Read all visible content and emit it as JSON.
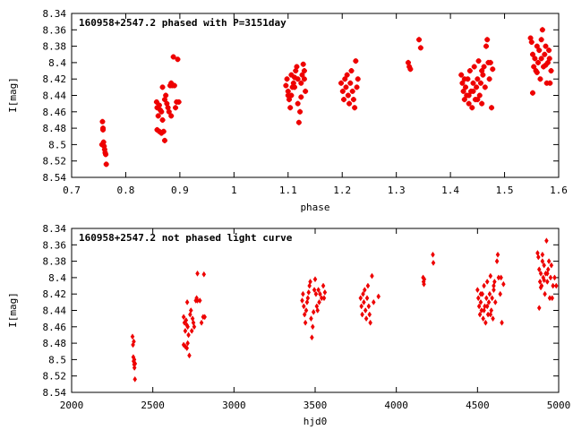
{
  "chart_data": [
    {
      "type": "scatter",
      "title": "160958+2547.2 phased with P=3151day",
      "xlabel": "phase",
      "ylabel": "I[mag]",
      "xlim": [
        0.7,
        1.6
      ],
      "ylim": [
        8.54,
        8.34
      ],
      "y_inverted": true,
      "grid": false,
      "color": "#ee0000",
      "xticks": [
        "0.7",
        "0.8",
        "0.9",
        "1",
        "1.1",
        "1.2",
        "1.3",
        "1.4",
        "1.5",
        "1.6"
      ],
      "yticks": [
        "8.34",
        "8.36",
        "8.38",
        "8.4",
        "8.42",
        "8.44",
        "8.46",
        "8.48",
        "8.5",
        "8.52",
        "8.54"
      ],
      "points": [
        [
          0.757,
          8.472
        ],
        [
          0.758,
          8.482
        ],
        [
          0.759,
          8.497
        ],
        [
          0.76,
          8.502
        ],
        [
          0.761,
          8.506
        ],
        [
          0.762,
          8.51
        ],
        [
          0.763,
          8.512
        ],
        [
          0.764,
          8.524
        ],
        [
          0.756,
          8.5
        ],
        [
          0.758,
          8.48
        ],
        [
          0.857,
          8.448
        ],
        [
          0.858,
          8.455
        ],
        [
          0.86,
          8.465
        ],
        [
          0.862,
          8.452
        ],
        [
          0.864,
          8.458
        ],
        [
          0.866,
          8.46
        ],
        [
          0.868,
          8.47
        ],
        [
          0.858,
          8.482
        ],
        [
          0.862,
          8.484
        ],
        [
          0.866,
          8.486
        ],
        [
          0.87,
          8.484
        ],
        [
          0.872,
          8.495
        ],
        [
          0.868,
          8.43
        ],
        [
          0.872,
          8.445
        ],
        [
          0.874,
          8.44
        ],
        [
          0.876,
          8.45
        ],
        [
          0.878,
          8.455
        ],
        [
          0.88,
          8.46
        ],
        [
          0.882,
          8.428
        ],
        [
          0.884,
          8.425
        ],
        [
          0.886,
          8.428
        ],
        [
          0.888,
          8.393
        ],
        [
          0.89,
          8.428
        ],
        [
          0.892,
          8.455
        ],
        [
          0.894,
          8.448
        ],
        [
          0.896,
          8.396
        ],
        [
          0.898,
          8.448
        ],
        [
          0.884,
          8.465
        ],
        [
          1.096,
          8.428
        ],
        [
          1.098,
          8.42
        ],
        [
          1.1,
          8.435
        ],
        [
          1.102,
          8.445
        ],
        [
          1.104,
          8.455
        ],
        [
          1.106,
          8.44
        ],
        [
          1.108,
          8.43
        ],
        [
          1.11,
          8.425
        ],
        [
          1.112,
          8.418
        ],
        [
          1.114,
          8.41
        ],
        [
          1.116,
          8.405
        ],
        [
          1.118,
          8.45
        ],
        [
          1.12,
          8.473
        ],
        [
          1.122,
          8.46
        ],
        [
          1.124,
          8.442
        ],
        [
          1.126,
          8.415
        ],
        [
          1.128,
          8.402
        ],
        [
          1.13,
          8.42
        ],
        [
          1.132,
          8.435
        ],
        [
          1.1,
          8.44
        ],
        [
          1.106,
          8.415
        ],
        [
          1.112,
          8.43
        ],
        [
          1.118,
          8.42
        ],
        [
          1.124,
          8.425
        ],
        [
          1.13,
          8.41
        ],
        [
          1.198,
          8.425
        ],
        [
          1.201,
          8.435
        ],
        [
          1.203,
          8.445
        ],
        [
          1.205,
          8.42
        ],
        [
          1.207,
          8.43
        ],
        [
          1.209,
          8.415
        ],
        [
          1.211,
          8.44
        ],
        [
          1.213,
          8.45
        ],
        [
          1.215,
          8.425
        ],
        [
          1.217,
          8.41
        ],
        [
          1.219,
          8.435
        ],
        [
          1.221,
          8.445
        ],
        [
          1.223,
          8.455
        ],
        [
          1.225,
          8.398
        ],
        [
          1.227,
          8.43
        ],
        [
          1.229,
          8.42
        ],
        [
          1.322,
          8.4
        ],
        [
          1.324,
          8.405
        ],
        [
          1.326,
          8.408
        ],
        [
          1.342,
          8.372
        ],
        [
          1.345,
          8.382
        ],
        [
          1.42,
          8.415
        ],
        [
          1.422,
          8.425
        ],
        [
          1.424,
          8.435
        ],
        [
          1.426,
          8.445
        ],
        [
          1.428,
          8.43
        ],
        [
          1.43,
          8.44
        ],
        [
          1.432,
          8.42
        ],
        [
          1.434,
          8.45
        ],
        [
          1.436,
          8.41
        ],
        [
          1.438,
          8.435
        ],
        [
          1.44,
          8.455
        ],
        [
          1.442,
          8.425
        ],
        [
          1.444,
          8.405
        ],
        [
          1.446,
          8.445
        ],
        [
          1.448,
          8.43
        ],
        [
          1.45,
          8.42
        ],
        [
          1.452,
          8.398
        ],
        [
          1.454,
          8.44
        ],
        [
          1.456,
          8.425
        ],
        [
          1.458,
          8.45
        ],
        [
          1.46,
          8.415
        ],
        [
          1.462,
          8.405
        ],
        [
          1.464,
          8.43
        ],
        [
          1.466,
          8.38
        ],
        [
          1.468,
          8.372
        ],
        [
          1.47,
          8.4
        ],
        [
          1.472,
          8.42
        ],
        [
          1.474,
          8.4
        ],
        [
          1.476,
          8.455
        ],
        [
          1.478,
          8.408
        ],
        [
          1.426,
          8.42
        ],
        [
          1.434,
          8.44
        ],
        [
          1.442,
          8.435
        ],
        [
          1.45,
          8.445
        ],
        [
          1.458,
          8.41
        ],
        [
          1.548,
          8.37
        ],
        [
          1.55,
          8.375
        ],
        [
          1.552,
          8.39
        ],
        [
          1.554,
          8.405
        ],
        [
          1.556,
          8.395
        ],
        [
          1.558,
          8.41
        ],
        [
          1.56,
          8.38
        ],
        [
          1.562,
          8.4
        ],
        [
          1.564,
          8.385
        ],
        [
          1.566,
          8.42
        ],
        [
          1.568,
          8.395
        ],
        [
          1.57,
          8.36
        ],
        [
          1.572,
          8.405
        ],
        [
          1.574,
          8.39
        ],
        [
          1.576,
          8.38
        ],
        [
          1.578,
          8.425
        ],
        [
          1.58,
          8.4
        ],
        [
          1.582,
          8.385
        ],
        [
          1.584,
          8.425
        ],
        [
          1.586,
          8.41
        ],
        [
          1.552,
          8.437
        ],
        [
          1.56,
          8.412
        ],
        [
          1.568,
          8.372
        ],
        [
          1.576,
          8.403
        ],
        [
          1.583,
          8.395
        ]
      ]
    },
    {
      "type": "scatter",
      "title": "160958+2547.2 not phased light curve",
      "xlabel": "hjd0",
      "ylabel": "I[mag]",
      "xlim": [
        2000,
        5000
      ],
      "ylim": [
        8.54,
        8.34
      ],
      "y_inverted": true,
      "grid": false,
      "color": "#ee0000",
      "xticks": [
        "2000",
        "2500",
        "3000",
        "3500",
        "4000",
        "4500",
        "5000"
      ],
      "yticks": [
        "8.34",
        "8.36",
        "8.38",
        "8.4",
        "8.42",
        "8.44",
        "8.46",
        "8.48",
        "8.5",
        "8.52",
        "8.54"
      ],
      "points": [
        [
          2375,
          8.472
        ],
        [
          2378,
          8.482
        ],
        [
          2380,
          8.497
        ],
        [
          2382,
          8.502
        ],
        [
          2385,
          8.506
        ],
        [
          2387,
          8.51
        ],
        [
          2390,
          8.524
        ],
        [
          2383,
          8.478
        ],
        [
          2386,
          8.5
        ],
        [
          2391,
          8.505
        ],
        [
          2690,
          8.448
        ],
        [
          2695,
          8.455
        ],
        [
          2700,
          8.465
        ],
        [
          2705,
          8.452
        ],
        [
          2710,
          8.458
        ],
        [
          2715,
          8.46
        ],
        [
          2720,
          8.47
        ],
        [
          2690,
          8.482
        ],
        [
          2700,
          8.484
        ],
        [
          2710,
          8.486
        ],
        [
          2715,
          8.48
        ],
        [
          2725,
          8.495
        ],
        [
          2712,
          8.43
        ],
        [
          2730,
          8.445
        ],
        [
          2735,
          8.44
        ],
        [
          2745,
          8.45
        ],
        [
          2750,
          8.455
        ],
        [
          2755,
          8.46
        ],
        [
          2765,
          8.428
        ],
        [
          2770,
          8.425
        ],
        [
          2775,
          8.428
        ],
        [
          2775,
          8.395
        ],
        [
          2790,
          8.428
        ],
        [
          2800,
          8.455
        ],
        [
          2810,
          8.448
        ],
        [
          2815,
          8.396
        ],
        [
          2820,
          8.448
        ],
        [
          2740,
          8.465
        ],
        [
          3420,
          8.428
        ],
        [
          3425,
          8.42
        ],
        [
          3430,
          8.435
        ],
        [
          3435,
          8.445
        ],
        [
          3440,
          8.455
        ],
        [
          3445,
          8.44
        ],
        [
          3450,
          8.43
        ],
        [
          3455,
          8.425
        ],
        [
          3460,
          8.418
        ],
        [
          3465,
          8.41
        ],
        [
          3470,
          8.405
        ],
        [
          3475,
          8.45
        ],
        [
          3480,
          8.473
        ],
        [
          3485,
          8.46
        ],
        [
          3490,
          8.442
        ],
        [
          3495,
          8.415
        ],
        [
          3500,
          8.402
        ],
        [
          3505,
          8.42
        ],
        [
          3510,
          8.435
        ],
        [
          3515,
          8.44
        ],
        [
          3520,
          8.415
        ],
        [
          3525,
          8.43
        ],
        [
          3530,
          8.42
        ],
        [
          3540,
          8.425
        ],
        [
          3550,
          8.41
        ],
        [
          3555,
          8.425
        ],
        [
          3560,
          8.418
        ],
        [
          3780,
          8.425
        ],
        [
          3785,
          8.435
        ],
        [
          3790,
          8.445
        ],
        [
          3795,
          8.42
        ],
        [
          3800,
          8.43
        ],
        [
          3805,
          8.415
        ],
        [
          3810,
          8.44
        ],
        [
          3815,
          8.45
        ],
        [
          3820,
          8.425
        ],
        [
          3825,
          8.41
        ],
        [
          3830,
          8.435
        ],
        [
          3835,
          8.445
        ],
        [
          3840,
          8.455
        ],
        [
          3850,
          8.398
        ],
        [
          3860,
          8.43
        ],
        [
          3890,
          8.423
        ],
        [
          4165,
          8.4
        ],
        [
          4168,
          8.405
        ],
        [
          4170,
          8.408
        ],
        [
          4172,
          8.402
        ],
        [
          4225,
          8.372
        ],
        [
          4228,
          8.382
        ],
        [
          4500,
          8.415
        ],
        [
          4505,
          8.425
        ],
        [
          4510,
          8.435
        ],
        [
          4515,
          8.445
        ],
        [
          4520,
          8.43
        ],
        [
          4525,
          8.44
        ],
        [
          4530,
          8.42
        ],
        [
          4535,
          8.45
        ],
        [
          4540,
          8.41
        ],
        [
          4545,
          8.435
        ],
        [
          4550,
          8.455
        ],
        [
          4555,
          8.425
        ],
        [
          4560,
          8.405
        ],
        [
          4565,
          8.445
        ],
        [
          4570,
          8.43
        ],
        [
          4575,
          8.42
        ],
        [
          4580,
          8.398
        ],
        [
          4585,
          8.44
        ],
        [
          4590,
          8.425
        ],
        [
          4595,
          8.45
        ],
        [
          4600,
          8.415
        ],
        [
          4605,
          8.405
        ],
        [
          4610,
          8.43
        ],
        [
          4620,
          8.38
        ],
        [
          4625,
          8.372
        ],
        [
          4630,
          8.4
        ],
        [
          4640,
          8.42
        ],
        [
          4645,
          8.4
        ],
        [
          4650,
          8.455
        ],
        [
          4660,
          8.408
        ],
        [
          4520,
          8.42
        ],
        [
          4540,
          8.44
        ],
        [
          4560,
          8.435
        ],
        [
          4580,
          8.445
        ],
        [
          4600,
          8.41
        ],
        [
          4870,
          8.37
        ],
        [
          4875,
          8.375
        ],
        [
          4880,
          8.39
        ],
        [
          4885,
          8.405
        ],
        [
          4890,
          8.395
        ],
        [
          4895,
          8.41
        ],
        [
          4900,
          8.38
        ],
        [
          4905,
          8.4
        ],
        [
          4910,
          8.385
        ],
        [
          4915,
          8.42
        ],
        [
          4920,
          8.395
        ],
        [
          4925,
          8.355
        ],
        [
          4930,
          8.405
        ],
        [
          4935,
          8.39
        ],
        [
          4940,
          8.38
        ],
        [
          4945,
          8.425
        ],
        [
          4950,
          8.4
        ],
        [
          4955,
          8.385
        ],
        [
          4960,
          8.425
        ],
        [
          4965,
          8.41
        ],
        [
          4880,
          8.437
        ],
        [
          4890,
          8.412
        ],
        [
          4900,
          8.372
        ],
        [
          4910,
          8.403
        ],
        [
          4930,
          8.395
        ],
        [
          4975,
          8.4
        ],
        [
          4985,
          8.41
        ]
      ]
    }
  ]
}
